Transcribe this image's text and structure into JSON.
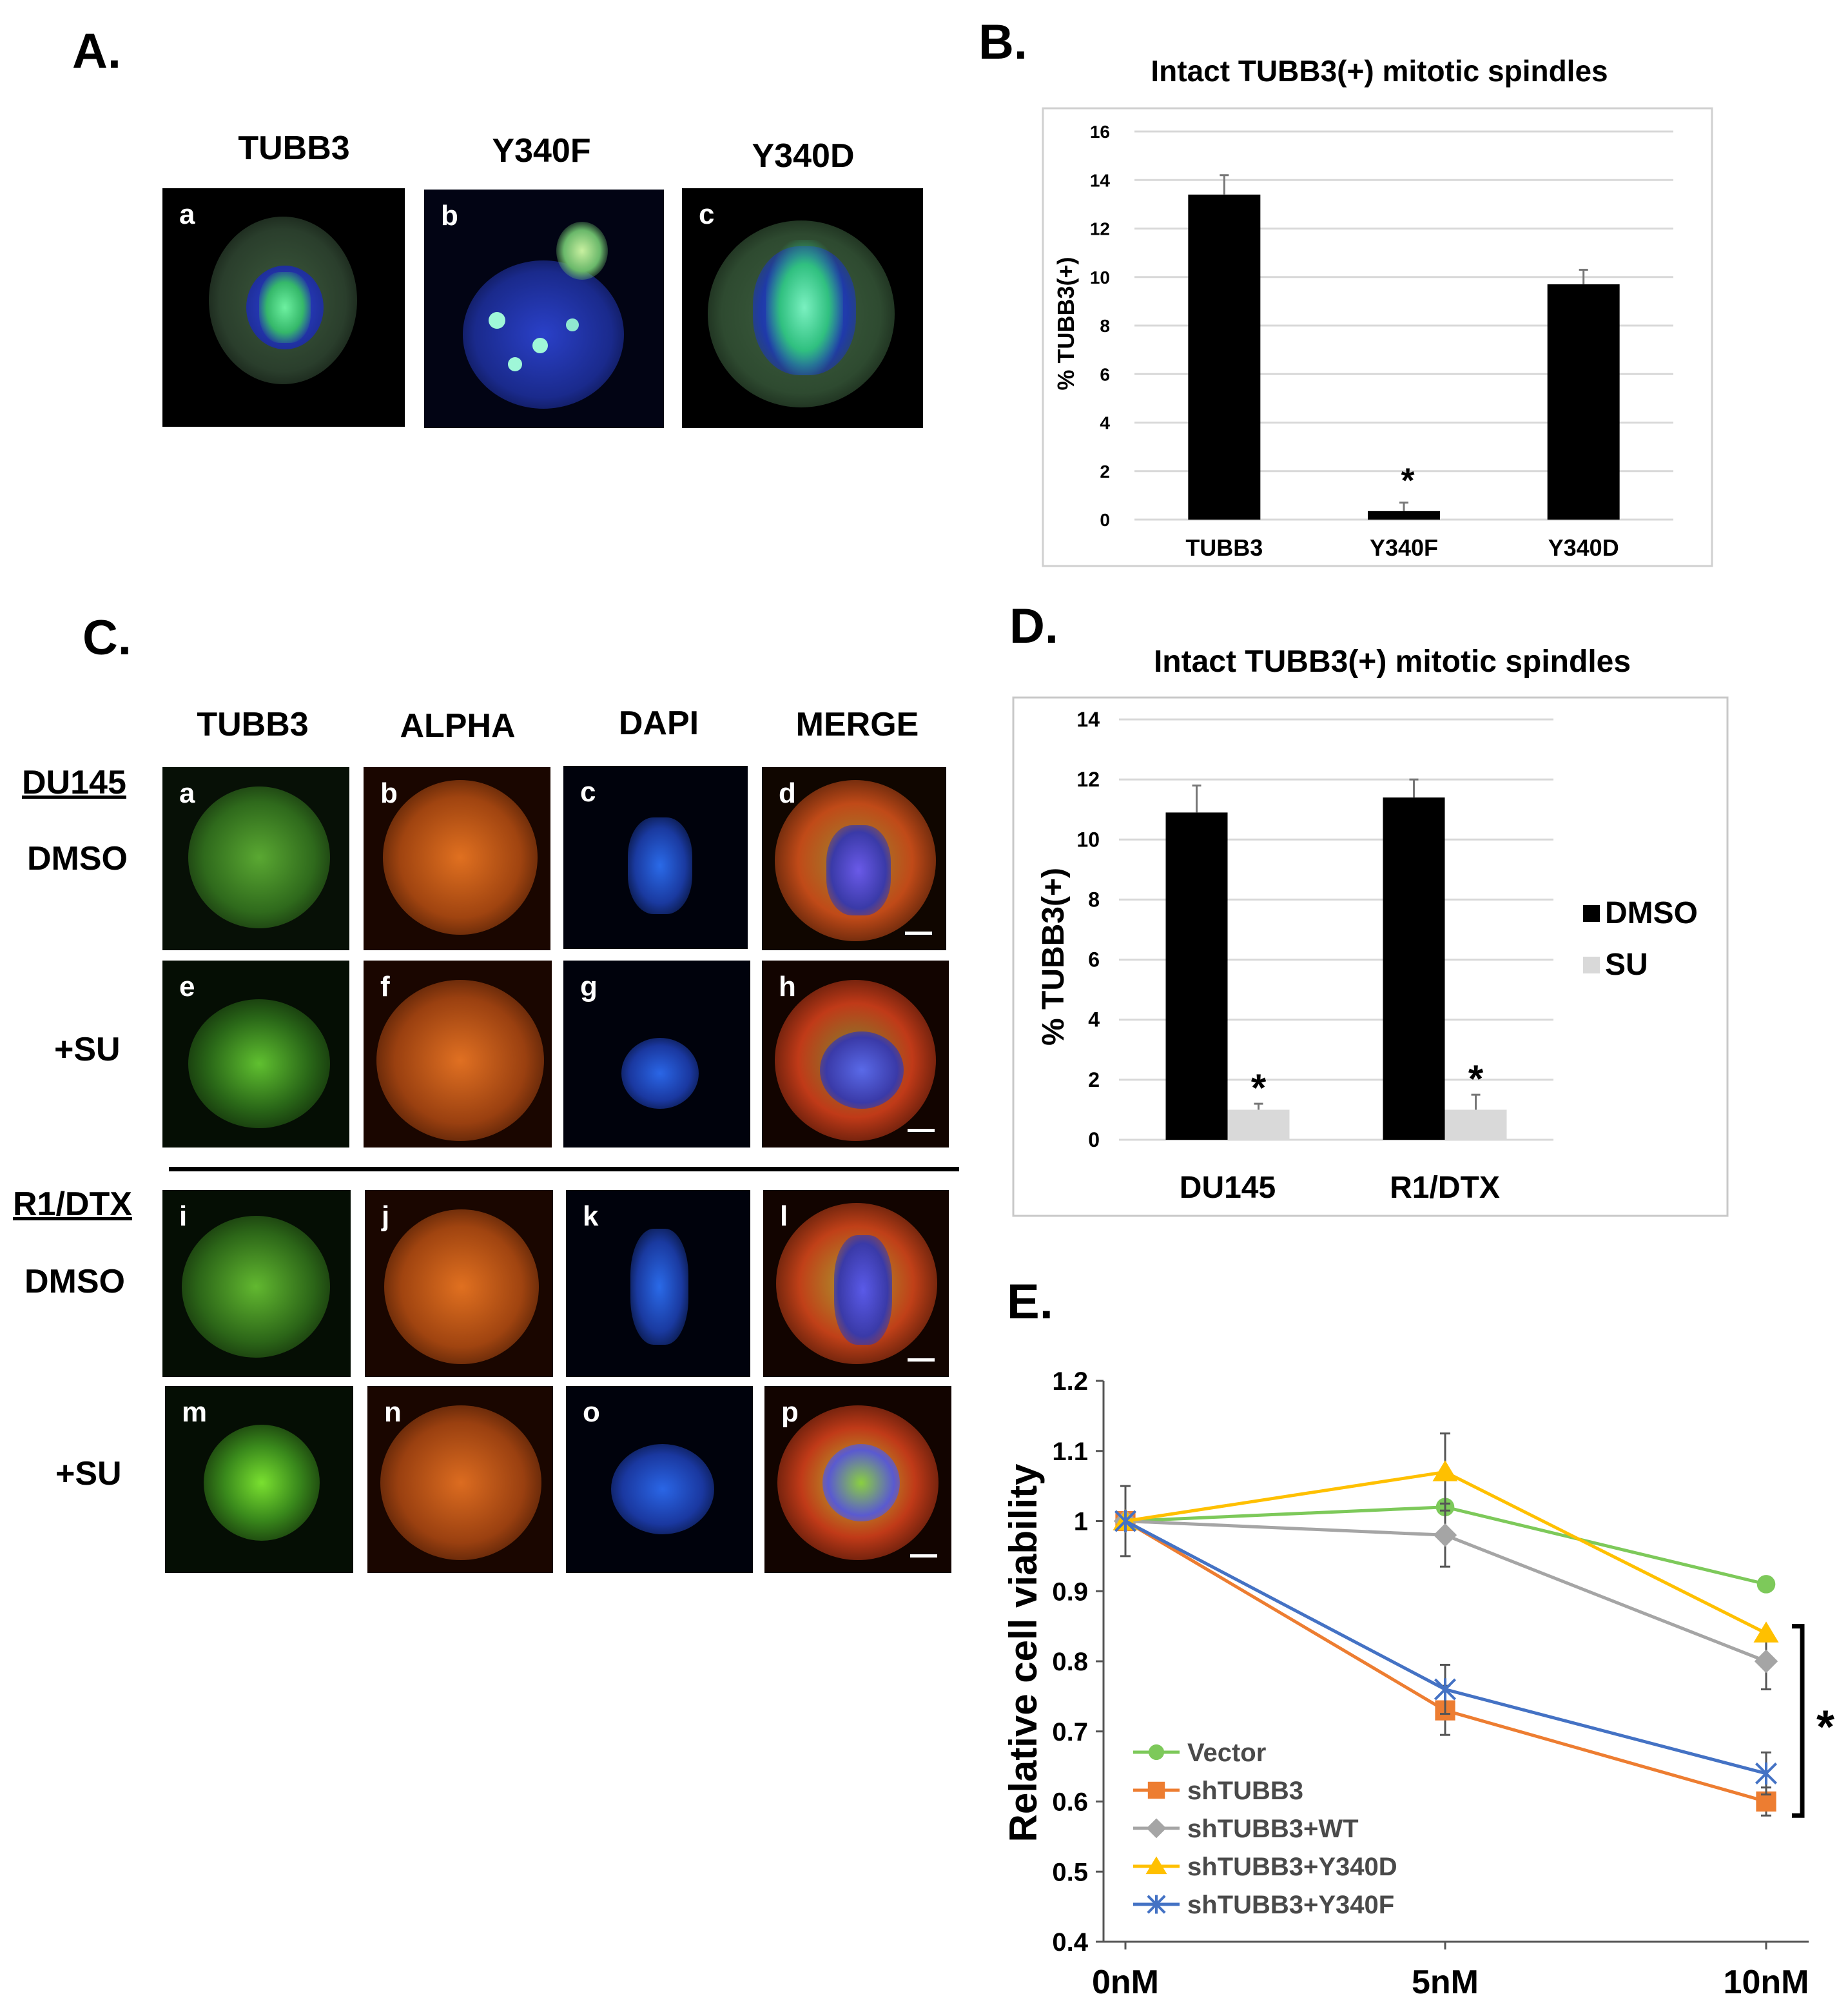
{
  "panel_letters": {
    "a": "A.",
    "b": "B.",
    "c": "C.",
    "d": "D.",
    "e": "E."
  },
  "panel_a": {
    "columns": [
      "TUBB3",
      "Y340F",
      "Y340D"
    ],
    "tags": [
      "a",
      "b",
      "c"
    ]
  },
  "panel_c": {
    "columns": [
      "TUBB3",
      "ALPHA",
      "DAPI",
      "MERGE"
    ],
    "rows": {
      "du145": "DU145",
      "dmso_1": "DMSO",
      "su_1": "+SU",
      "r1dtx": "R1/DTX",
      "dmso_2": "DMSO",
      "su_2": "+SU"
    },
    "tags": [
      "a",
      "b",
      "c",
      "d",
      "e",
      "f",
      "g",
      "h",
      "i",
      "j",
      "k",
      "l",
      "m",
      "n",
      "o",
      "p"
    ]
  },
  "chart_data": [
    {
      "id": "panel-b",
      "type": "bar",
      "title": "Intact TUBB3(+) mitotic spindles",
      "ylabel": "% TUBB3(+)",
      "xlabel": "",
      "categories": [
        "TUBB3",
        "Y340F",
        "Y340D"
      ],
      "values": [
        13.4,
        0.35,
        9.7
      ],
      "errors": [
        0.8,
        0.35,
        0.6
      ],
      "annotations": [
        "",
        "*",
        ""
      ],
      "ylim": [
        0,
        16
      ],
      "yticks": [
        0,
        2,
        4,
        6,
        8,
        10,
        12,
        14,
        16
      ],
      "grid": true,
      "color": "#000000"
    },
    {
      "id": "panel-d",
      "type": "bar",
      "title": "Intact TUBB3(+) mitotic spindles",
      "ylabel": "% TUBB3(+)",
      "xlabel": "",
      "categories": [
        "DU145",
        "R1/DTX"
      ],
      "series": [
        {
          "name": "DMSO",
          "values": [
            10.9,
            11.4
          ],
          "errors": [
            0.9,
            0.6
          ],
          "color": "#000000",
          "annotations": [
            "",
            ""
          ]
        },
        {
          "name": "SU",
          "values": [
            1.0,
            1.0
          ],
          "errors": [
            0.2,
            0.5
          ],
          "color": "#d9d9d9",
          "annotations": [
            "*",
            "*"
          ]
        }
      ],
      "ylim": [
        0,
        14
      ],
      "yticks": [
        0,
        2,
        4,
        6,
        8,
        10,
        12,
        14
      ],
      "grid": true,
      "legend": "right"
    },
    {
      "id": "panel-e",
      "type": "line",
      "title": "",
      "ylabel": "Relative cell viability",
      "xlabel": "",
      "categories": [
        "0nM",
        "5nM",
        "10nM"
      ],
      "series": [
        {
          "name": "Vector",
          "values": [
            1.0,
            1.02,
            0.91
          ],
          "errors": [
            0.0,
            0.0,
            0.0
          ],
          "color": "#7dc95a",
          "marker": "circle"
        },
        {
          "name": "shTUBB3",
          "values": [
            1.0,
            0.73,
            0.6
          ],
          "errors": [
            0.0,
            0.035,
            0.02
          ],
          "color": "#ed7d31",
          "marker": "square"
        },
        {
          "name": "shTUBB3+WT",
          "values": [
            1.0,
            0.98,
            0.8
          ],
          "errors": [
            0.05,
            0.045,
            0.04
          ],
          "color": "#a5a5a5",
          "marker": "diamond"
        },
        {
          "name": "shTUBB3+Y340D",
          "values": [
            1.0,
            1.07,
            0.84
          ],
          "errors": [
            0.0,
            0.055,
            0.0
          ],
          "color": "#ffc000",
          "marker": "triangle"
        },
        {
          "name": "shTUBB3+Y340F",
          "values": [
            1.0,
            0.76,
            0.64
          ],
          "errors": [
            0.0,
            0.035,
            0.03
          ],
          "color": "#4472c4",
          "marker": "x"
        }
      ],
      "ylim": [
        0.4,
        1.2
      ],
      "yticks": [
        "0.4",
        "0.5",
        "0.6",
        "0.7",
        "0.8",
        "0.9",
        "1",
        "1.1",
        "1.2"
      ],
      "grid": false,
      "legend": "bottom-left",
      "significance": "*"
    }
  ]
}
